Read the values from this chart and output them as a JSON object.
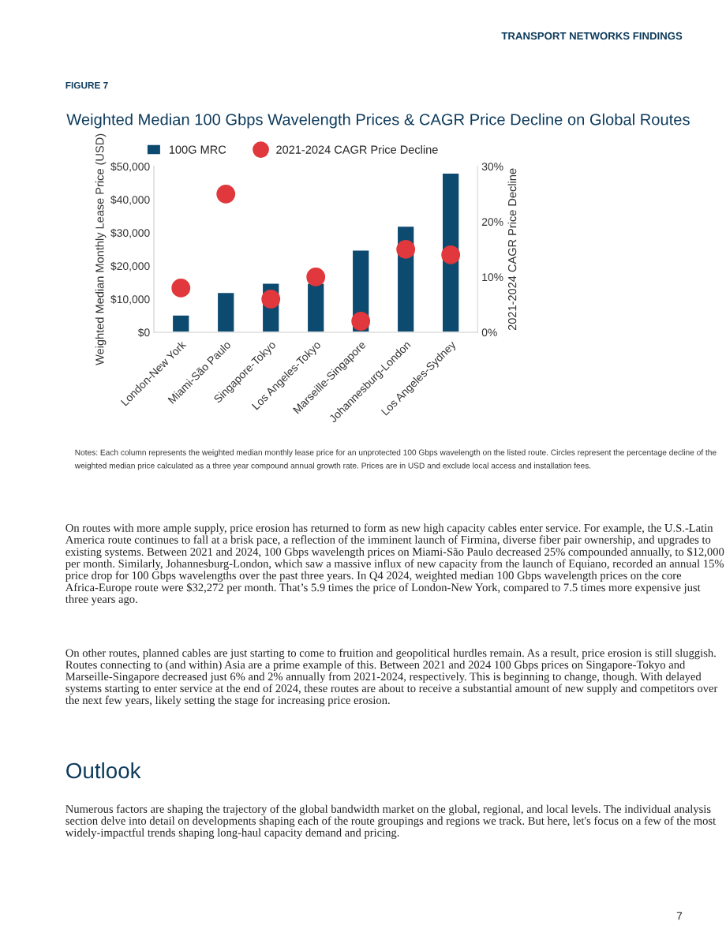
{
  "chart_data": {
    "type": "bar",
    "title": "Weighted Median 100 Gbps Wavelength Prices & CAGR Price Decline on Global Routes",
    "ylabel": "Weighted Median Monthly Lease Price (USD)",
    "y2label": "2021-2024 CAGR Price Decline",
    "categories": [
      "London-New York",
      "Miami-São Paulo",
      "Singapore-Tokyo",
      "Los Angeles-Tokyo",
      "Marseille-Singapore",
      "Johannesburg-London",
      "Los Angeles-Sydney"
    ],
    "series": [
      {
        "name": "100G MRC",
        "color": "#0d4a70",
        "values": [
          5200,
          12000,
          14800,
          14800,
          24800,
          32000,
          48000
        ]
      },
      {
        "name": "2021-2024 CAGR Price Decline",
        "type": "scatter",
        "axis": "y2",
        "color": "#e0383c",
        "values": [
          8,
          25,
          6,
          10,
          2,
          15,
          14
        ]
      }
    ],
    "ylim": [
      0,
      50000
    ],
    "yticks": [
      {
        "value": 0,
        "label": "$0"
      },
      {
        "value": 10000,
        "label": "$10,000"
      },
      {
        "value": 20000,
        "label": "$20,000"
      },
      {
        "value": 30000,
        "label": "$30,000"
      },
      {
        "value": 40000,
        "label": "$40,000"
      },
      {
        "value": 50000,
        "label": "$50,000"
      }
    ],
    "y2lim": [
      0,
      30
    ],
    "y2ticks": [
      {
        "value": 0,
        "label": "0%"
      },
      {
        "value": 10,
        "label": "10%"
      },
      {
        "value": 20,
        "label": "20%"
      },
      {
        "value": 30,
        "label": "30%"
      }
    ],
    "marker": "circle",
    "legend": "top",
    "grid": false,
    "annotations": [
      "TRANSPORT NETWORKS FINDINGS",
      "FIGURE 7",
      "Notes: Each column represents the weighted median monthly lease price for an unprotected 100 Gbps wavelength on the listed route. Circles represent the percentage decline of the weighted median price calculated as a three year compound annual growth rate. Prices are in USD and exclude local access and installation fees.",
      "On routes with more ample supply, price erosion has returned to form as new high capacity cables enter service. For example, the U.S.-Latin America route continues to fall at a brisk pace, a reflection of the imminent launch of Firmina, diverse fiber pair ownership, and upgrades to existing systems. Between 2021 and 2024, 100 Gbps wavelength prices on Miami-São Paulo decreased 25% compounded annually, to $12,000 per month. Similarly, Johannesburg-London, which saw a massive influx of new capacity from the launch of Equiano, recorded an annual 15% price drop for 100 Gbps wavelengths over the past three years. In Q4 2024, weighted median 100 Gbps wavelength prices on the core Africa-Europe route were $32,272 per month. That’s 5.9 times the price of London-New York, compared to 7.5 times more expensive just three years ago.",
      "On other routes, planned cables are just starting to come to fruition and geopolitical hurdles remain. As a result, price erosion is still sluggish. Routes connecting to (and within) Asia are a prime example of this. Between 2021 and 2024 100 Gbps prices on Singapore-Tokyo and Marseille-Singapore decreased just 6% and 2% annually from 2021-2024, respectively. This is beginning to change, though. With delayed systems starting to enter service at the end of 2024, these routes are about to receive a substantial amount of new supply and competitors over the next few years, likely setting the stage for increasing price erosion.",
      "Outlook",
      "Numerous factors are shaping the trajectory of the global bandwidth market on the global, regional, and local levels. The individual analysis section delve into detail on developments shaping each of the route groupings and regions we track. But here, let's focus on a few of the most widely-impactful trends shaping long-haul capacity demand and pricing.",
      "7"
    ]
  }
}
